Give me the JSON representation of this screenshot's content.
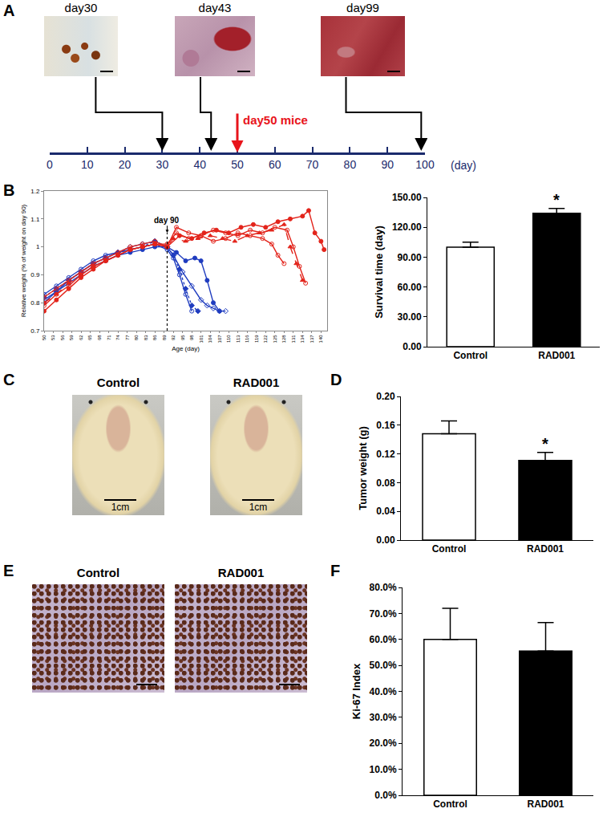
{
  "panel_labels": [
    "A",
    "B",
    "C",
    "D",
    "E",
    "F"
  ],
  "timeline": {
    "type": "timeline",
    "xlim": [
      0,
      100
    ],
    "xticks": [
      0,
      10,
      20,
      30,
      40,
      50,
      60,
      70,
      80,
      90,
      100
    ],
    "unit_label": "(day)",
    "images": [
      {
        "label": "day30",
        "day": 30
      },
      {
        "label": "day43",
        "day": 43
      },
      {
        "label": "day99",
        "day": 99
      }
    ],
    "event": {
      "label": "day50 mice",
      "day": 50,
      "color": "#e8141b"
    }
  },
  "photos_C": {
    "labels": [
      "Control",
      "RAD001"
    ],
    "scale_bar": "1cm"
  },
  "photos_E": {
    "labels": [
      "Control",
      "RAD001"
    ]
  },
  "chart_data": [
    {
      "type": "line",
      "xlabel": "Age (day)",
      "ylabel": "Relative weight (% of weight on day 90)",
      "xlim": [
        50,
        142
      ],
      "xticks": [
        50,
        53,
        56,
        59,
        62,
        65,
        68,
        71,
        74,
        77,
        80,
        83,
        86,
        89,
        92,
        95,
        98,
        101,
        104,
        107,
        110,
        113,
        116,
        119,
        122,
        125,
        128,
        131,
        134,
        137,
        140
      ],
      "ylim": [
        0.7,
        1.2
      ],
      "yticks": [
        0.7,
        0.8,
        0.9,
        1,
        1.1,
        1.2
      ],
      "grid": false,
      "annotations": [
        {
          "text": "day 90",
          "x": 90,
          "y": 1.05
        }
      ],
      "series": [
        {
          "color": "#1f3cbf",
          "marker": "circle",
          "line_style": "solid",
          "x": [
            50,
            54,
            58,
            62,
            66,
            70,
            74,
            78,
            82,
            86,
            90,
            93,
            96,
            99,
            101,
            103,
            105,
            107
          ],
          "values": [
            0.8,
            0.84,
            0.87,
            0.9,
            0.93,
            0.95,
            0.97,
            0.98,
            0.99,
            1.0,
            1.0,
            0.98,
            0.95,
            0.96,
            0.95,
            0.88,
            0.8,
            0.77
          ]
        },
        {
          "color": "#1f3cbf",
          "marker": "circle-open",
          "line_style": "solid",
          "x": [
            50,
            54,
            58,
            62,
            66,
            70,
            74,
            78,
            82,
            86,
            90,
            92,
            94,
            96,
            98
          ],
          "values": [
            0.83,
            0.86,
            0.89,
            0.92,
            0.95,
            0.97,
            0.98,
            0.99,
            1.0,
            1.01,
            0.99,
            0.96,
            0.9,
            0.83,
            0.77
          ]
        },
        {
          "color": "#1f3cbf",
          "marker": "diamond",
          "line_style": "dotted",
          "x": [
            50,
            54,
            58,
            62,
            66,
            70,
            74,
            78,
            82,
            86,
            90,
            92,
            94,
            96,
            98,
            100
          ],
          "values": [
            0.82,
            0.85,
            0.88,
            0.91,
            0.94,
            0.96,
            0.98,
            0.99,
            1.0,
            1.02,
            1.0,
            0.97,
            0.92,
            0.85,
            0.79,
            0.77
          ]
        },
        {
          "color": "#1f3cbf",
          "marker": "diamond-open",
          "line_style": "solid",
          "x": [
            50,
            54,
            58,
            62,
            66,
            70,
            74,
            78,
            82,
            86,
            90,
            92,
            95,
            98,
            101,
            103,
            105,
            107,
            109
          ],
          "values": [
            0.81,
            0.84,
            0.88,
            0.91,
            0.94,
            0.96,
            0.98,
            1.0,
            1.01,
            1.02,
            1.0,
            0.97,
            0.91,
            0.86,
            0.81,
            0.79,
            0.78,
            0.77,
            0.77
          ]
        },
        {
          "color": "#e3241b",
          "marker": "circle",
          "line_style": "solid",
          "x": [
            50,
            54,
            58,
            62,
            66,
            70,
            74,
            78,
            82,
            86,
            90,
            94,
            98,
            102,
            106,
            110,
            114,
            118,
            122,
            126,
            130,
            134,
            136,
            138,
            140,
            141
          ],
          "values": [
            0.77,
            0.81,
            0.85,
            0.89,
            0.92,
            0.95,
            0.97,
            0.99,
            1.0,
            1.01,
            1.0,
            1.04,
            1.03,
            1.05,
            1.06,
            1.05,
            1.07,
            1.08,
            1.07,
            1.09,
            1.1,
            1.11,
            1.13,
            1.05,
            1.02,
            0.99
          ]
        },
        {
          "color": "#e3241b",
          "marker": "circle-open",
          "line_style": "solid",
          "x": [
            50,
            54,
            58,
            62,
            66,
            70,
            74,
            78,
            82,
            86,
            90,
            93,
            97,
            101,
            105,
            109,
            113,
            117,
            121,
            125,
            129,
            131,
            133,
            135
          ],
          "values": [
            0.82,
            0.85,
            0.88,
            0.91,
            0.94,
            0.96,
            0.98,
            1.0,
            1.01,
            1.02,
            1.0,
            1.07,
            1.05,
            1.04,
            1.06,
            1.05,
            1.04,
            1.06,
            1.05,
            1.07,
            1.06,
            1.0,
            0.93,
            0.87
          ]
        },
        {
          "color": "#e3241b",
          "marker": "triangle-up",
          "line_style": "dashed",
          "x": [
            50,
            54,
            58,
            62,
            66,
            70,
            74,
            78,
            82,
            86,
            90,
            92,
            96,
            100,
            104,
            108,
            112,
            116,
            120,
            124,
            128,
            130,
            132,
            134
          ],
          "values": [
            0.8,
            0.83,
            0.87,
            0.9,
            0.93,
            0.95,
            0.97,
            0.99,
            1.0,
            1.01,
            1.0,
            1.03,
            1.02,
            1.03,
            1.04,
            1.03,
            1.02,
            1.04,
            1.05,
            1.06,
            1.08,
            1.0,
            0.94,
            0.88
          ]
        },
        {
          "color": "#e3241b",
          "marker": "circle-open",
          "line_style": "solid",
          "x": [
            50,
            54,
            58,
            62,
            66,
            70,
            74,
            78,
            82,
            86,
            90,
            93,
            97,
            101,
            105,
            109,
            113,
            117,
            121,
            124,
            126,
            128
          ],
          "values": [
            0.79,
            0.83,
            0.86,
            0.9,
            0.93,
            0.95,
            0.97,
            0.99,
            1.0,
            1.01,
            1.01,
            1.05,
            1.03,
            1.04,
            1.02,
            1.03,
            1.05,
            1.04,
            1.03,
            1.01,
            0.97,
            0.94
          ]
        }
      ]
    },
    {
      "type": "bar",
      "ylabel": "Survival time (day)",
      "categories": [
        "Control",
        "RAD001"
      ],
      "values": [
        100,
        134
      ],
      "errors": [
        5,
        5
      ],
      "colors": [
        "#ffffff",
        "#000000"
      ],
      "ylim": [
        0,
        150
      ],
      "yticks": [
        {
          "value": 0,
          "label": "0.00"
        },
        {
          "value": 30,
          "label": "30.00"
        },
        {
          "value": 60,
          "label": "60.00"
        },
        {
          "value": 90,
          "label": "90.00"
        },
        {
          "value": 120,
          "label": "120.00"
        },
        {
          "value": 150,
          "label": "150.00"
        }
      ],
      "annotations": [
        {
          "text": "*",
          "category": "RAD001"
        }
      ]
    },
    {
      "type": "bar",
      "ylabel": "Tumor weight (g)",
      "categories": [
        "Control",
        "RAD001"
      ],
      "values": [
        0.148,
        0.111
      ],
      "errors": [
        0.018,
        0.011
      ],
      "colors": [
        "#ffffff",
        "#000000"
      ],
      "ylim": [
        0,
        0.2
      ],
      "yticks": [
        {
          "value": 0,
          "label": "0.00"
        },
        0.04,
        0.08,
        0.12,
        0.16,
        {
          "value": 0.2,
          "label": "0.20"
        }
      ],
      "annotations": [
        {
          "text": "*",
          "category": "RAD001"
        }
      ]
    },
    {
      "type": "bar",
      "ylabel": "Ki-67 Index",
      "categories": [
        "Control",
        "RAD001"
      ],
      "values": [
        60,
        55.5
      ],
      "errors": [
        12,
        11
      ],
      "colors": [
        "#ffffff",
        "#000000"
      ],
      "ylim": [
        0,
        80
      ],
      "yticks": [
        {
          "value": 0,
          "label": "0.0%"
        },
        {
          "value": 10,
          "label": "10.0%"
        },
        {
          "value": 20,
          "label": "20.0%"
        },
        {
          "value": 30,
          "label": "30.0%"
        },
        {
          "value": 40,
          "label": "40.0%"
        },
        {
          "value": 50,
          "label": "50.0%"
        },
        {
          "value": 60,
          "label": "60.0%"
        },
        {
          "value": 70,
          "label": "70.0%"
        },
        {
          "value": 80,
          "label": "80.0%"
        }
      ],
      "annotations": []
    }
  ]
}
